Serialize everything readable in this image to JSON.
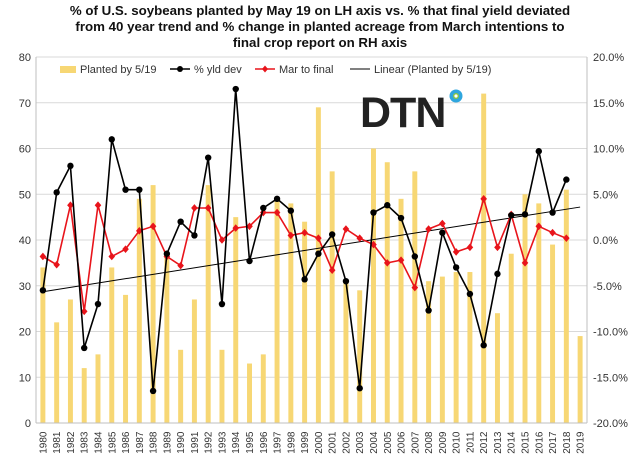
{
  "chart_data": {
    "type": "bar+line",
    "title_lines": [
      "% of U.S. soybeans planted by May 19 on LH axis vs. % that final yield deviated",
      "from 40 year trend and % change in planted acreage from March intentions to",
      "final crop report on RH axis"
    ],
    "categories": [
      "1980",
      "1981",
      "1982",
      "1983",
      "1984",
      "1985",
      "1986",
      "1987",
      "1988",
      "1989",
      "1990",
      "1991",
      "1992",
      "1993",
      "1994",
      "1995",
      "1996",
      "1997",
      "1998",
      "1999",
      "2000",
      "2001",
      "2002",
      "2003",
      "2004",
      "2005",
      "2006",
      "2007",
      "2008",
      "2009",
      "2010",
      "2011",
      "2012",
      "2013",
      "2014",
      "2015",
      "2016",
      "2017",
      "2018",
      "2019"
    ],
    "left_axis": {
      "min": 0,
      "max": 80,
      "step": 10,
      "tick_labels": [
        "0",
        "10",
        "20",
        "30",
        "40",
        "50",
        "60",
        "70",
        "80"
      ]
    },
    "right_axis": {
      "min": -20,
      "max": 20,
      "step": 5,
      "tick_labels": [
        "-20.0%",
        "-15.0%",
        "-10.0%",
        "-5.0%",
        "0.0%",
        "5.0%",
        "10.0%",
        "15.0%",
        "20.0%"
      ]
    },
    "grid": true,
    "legend_position": "top",
    "series": [
      {
        "name": "Planted by 5/19",
        "type": "bar",
        "axis": "left",
        "color": "#F7D774",
        "values": [
          34,
          22,
          27,
          12,
          15,
          34,
          28,
          49,
          52,
          37,
          16,
          27,
          52,
          16,
          45,
          13,
          15,
          49,
          48,
          44,
          69,
          55,
          31,
          29,
          60,
          57,
          49,
          55,
          31,
          32,
          33,
          33,
          72,
          24,
          37,
          50,
          48,
          39,
          51,
          19
        ]
      },
      {
        "name": "% yld dev",
        "type": "line",
        "axis": "right",
        "color": "#000000",
        "marker": "circle",
        "values": [
          -5.5,
          5.2,
          8.1,
          -11.8,
          -7,
          11,
          5.5,
          5.5,
          -16.5,
          -1.5,
          2,
          0.5,
          9,
          -7,
          16.5,
          -2.3,
          3.5,
          4.5,
          3.2,
          -4.3,
          -1.5,
          0.6,
          -4.5,
          -16.2,
          3,
          3.8,
          2.4,
          -1.8,
          -7.7,
          0.8,
          -3,
          -5.9,
          -11.5,
          -3.7,
          2.7,
          2.8,
          9.7,
          3,
          6.6,
          null
        ]
      },
      {
        "name": "Mar to final",
        "type": "line",
        "axis": "right",
        "color": "#E8141B",
        "marker": "diamond",
        "values": [
          -1.8,
          -2.7,
          3.8,
          -7.8,
          3.8,
          -1.8,
          -1,
          1,
          1.5,
          -1.8,
          -2.8,
          3.5,
          3.5,
          0,
          1.3,
          1.5,
          3,
          3,
          0.5,
          0.8,
          0.2,
          -3.3,
          1.2,
          0.2,
          -0.5,
          -2.5,
          -2.2,
          -5.2,
          1.2,
          1.8,
          -1.3,
          -0.8,
          4.5,
          -0.8,
          2.8,
          -2.5,
          1.5,
          0.8,
          0.2,
          null
        ]
      },
      {
        "name": "Linear (Planted by 5/19)",
        "type": "trendline",
        "axis": "left",
        "color": "#000000",
        "start": 28.7,
        "end": 47.2
      }
    ]
  },
  "logo": {
    "text": "DTN",
    "dot_colors": [
      "#2FA6DE",
      "#8DC63F"
    ]
  }
}
